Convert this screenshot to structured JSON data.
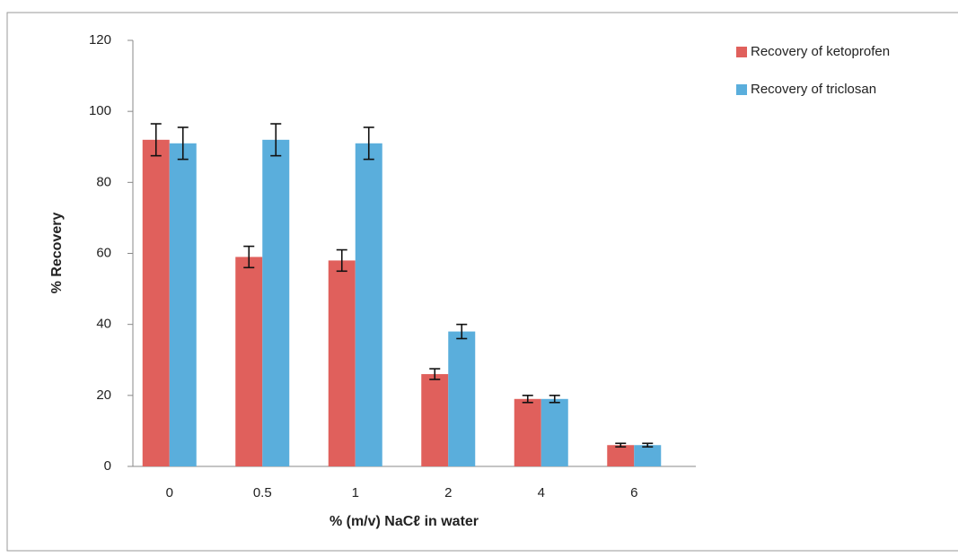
{
  "chart_data": {
    "type": "bar",
    "xlabel": "% (m/v) NaCℓ in water",
    "ylabel": "% Recovery",
    "categories": [
      "0",
      "0.5",
      "1",
      "2",
      "4",
      "6"
    ],
    "series": [
      {
        "name": "Recovery of ketoprofen",
        "color": "#e0605c",
        "values": [
          92,
          59,
          58,
          26,
          19,
          6
        ],
        "errors": [
          4.5,
          3,
          3,
          1.5,
          1,
          0.5
        ]
      },
      {
        "name": "Recovery of triclosan",
        "color": "#5aaedc",
        "values": [
          91,
          92,
          91,
          38,
          19,
          6
        ],
        "errors": [
          4.5,
          4.5,
          4.5,
          2,
          1,
          0.5
        ]
      }
    ],
    "ylim": [
      0,
      120
    ],
    "yticks": [
      0,
      20,
      40,
      60,
      80,
      100,
      120
    ],
    "grid": false,
    "legend": "top-right"
  }
}
